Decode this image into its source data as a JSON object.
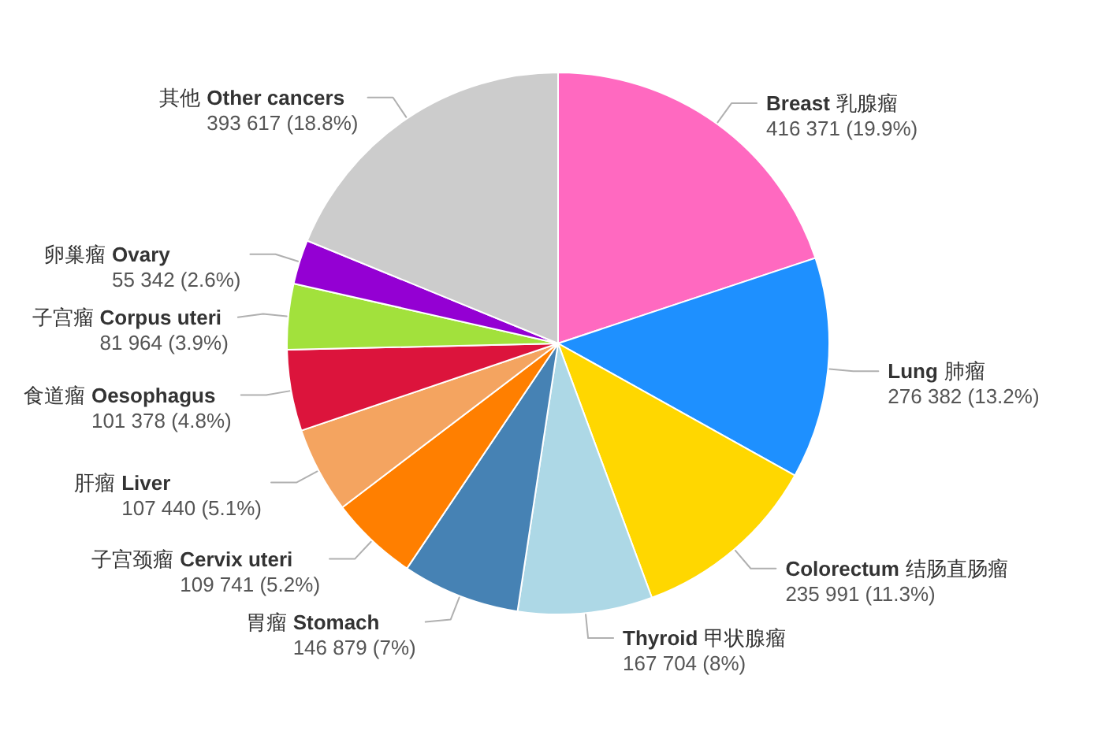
{
  "chart_data": {
    "type": "pie",
    "categories": [
      "Breast 乳腺瘤",
      "Lung 肺瘤",
      "Colorectum 结肠直肠瘤",
      "Thyroid 甲状腺瘤",
      "胃瘤 Stomach",
      "子宫颈瘤 Cervix uteri",
      "肝瘤 Liver",
      "食道瘤 Oesophagus",
      "子宫瘤 Corpus uteri",
      "卵巢瘤 Ovary",
      "其他 Other cancers"
    ],
    "values": [
      416371,
      276382,
      235991,
      167704,
      146879,
      109741,
      107440,
      101378,
      81964,
      55342,
      393617
    ],
    "value_labels": [
      "416 371 (19.9%)",
      "276 382 (13.2%)",
      "235 991 (11.3%)",
      "167 704 (8%)",
      "146 879 (7%)",
      "109 741 (5.2%)",
      "107 440 (5.1%)",
      "101 378 (4.8%)",
      "81 964 (3.9%)",
      "55 342 (2.6%)",
      "393 617 (18.8%)"
    ],
    "colors": [
      "#ff69c0",
      "#1e90ff",
      "#ffd700",
      "#add8e6",
      "#4682b4",
      "#ff7f00",
      "#f4a460",
      "#dc143c",
      "#a2e13c",
      "#9400d3",
      "#cccccc"
    ]
  }
}
